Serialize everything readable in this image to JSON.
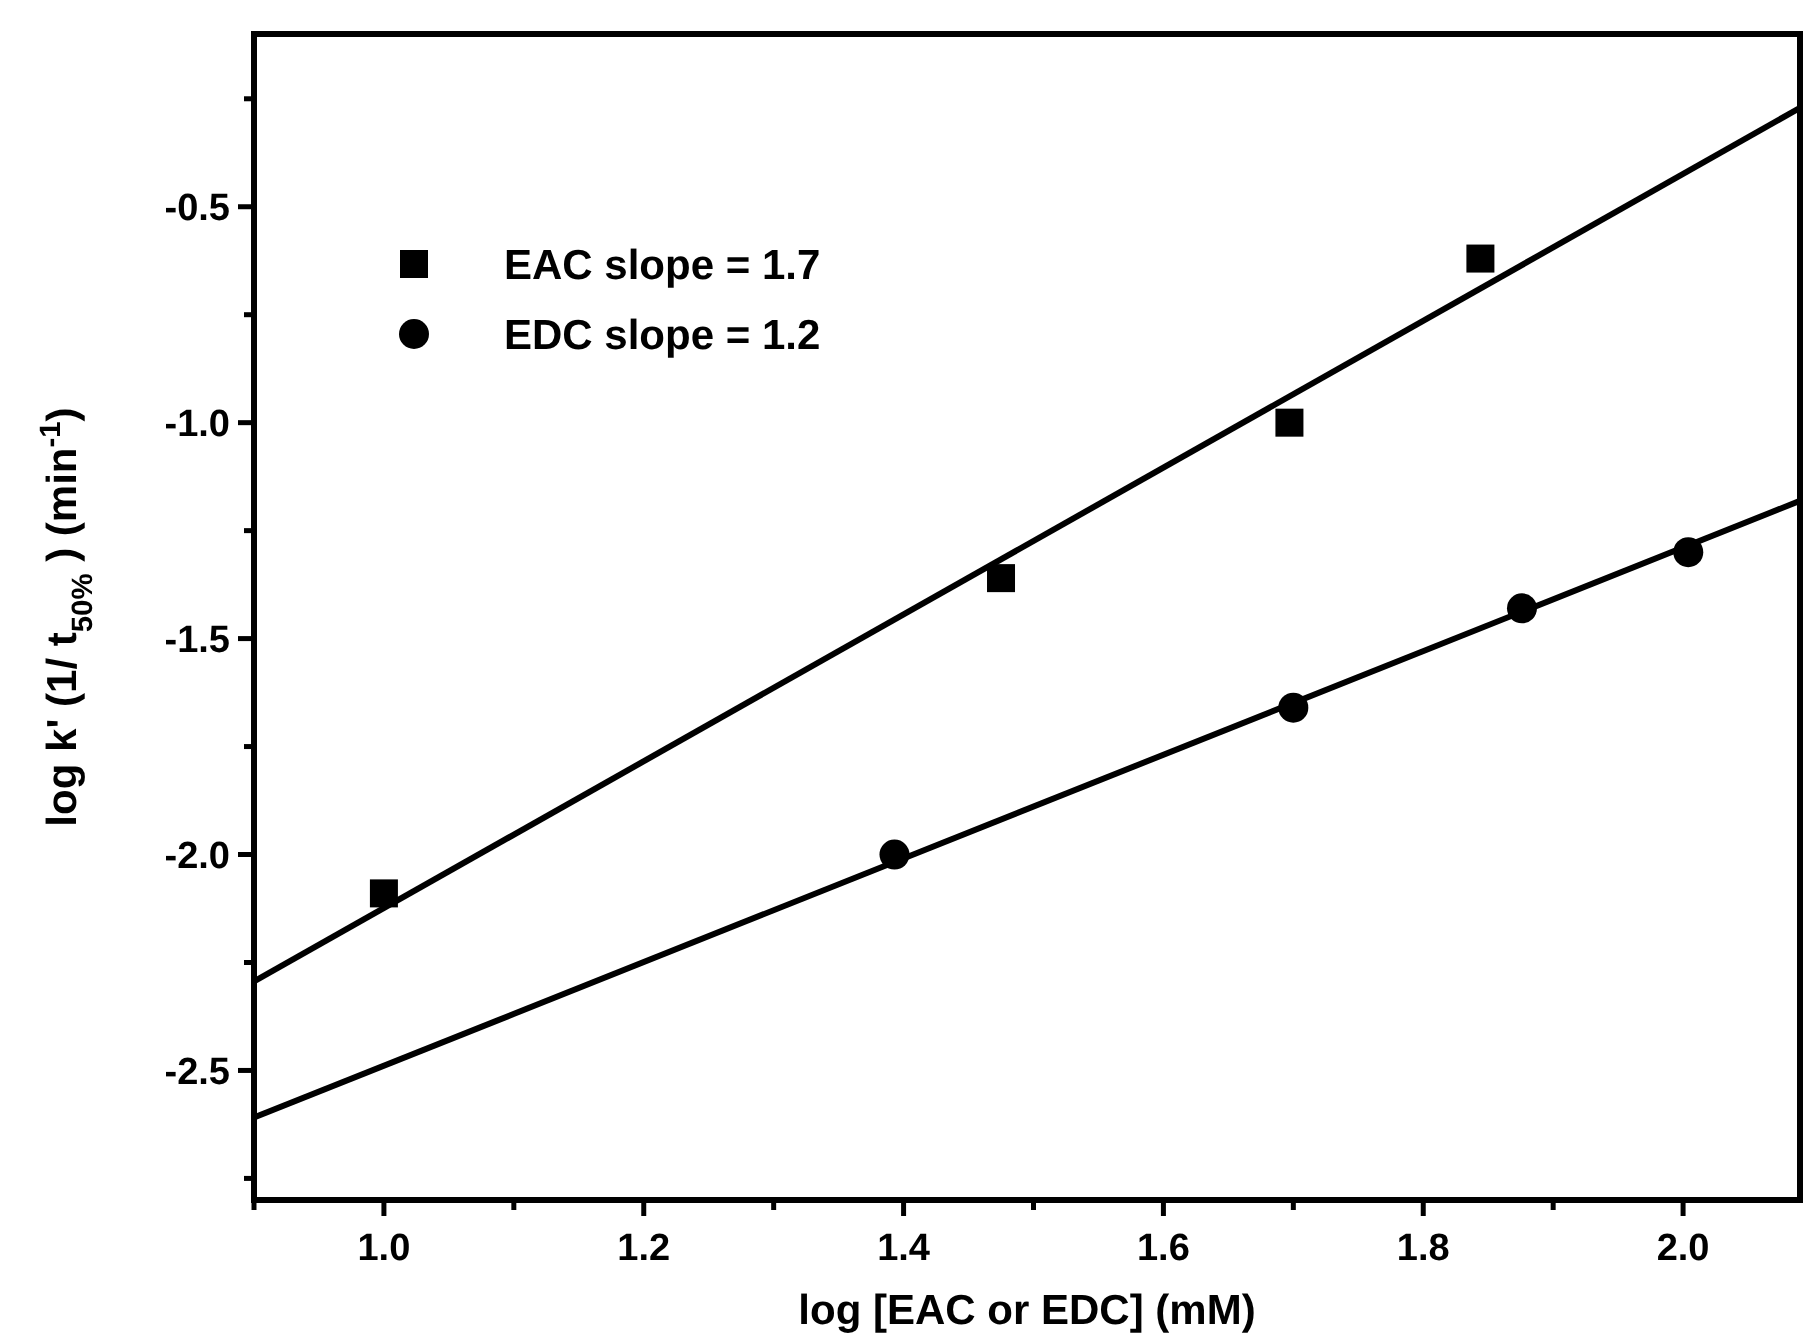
{
  "chart_data": {
    "type": "scatter",
    "xlabel": "log [EAC or EDC] (mM)",
    "ylabel": "log k' (1/ t$_{50%}$ ) (min$^{-1}$)",
    "xlim": [
      0.9,
      2.09
    ],
    "ylim": [
      -2.8,
      -0.1
    ],
    "xticks": [
      {
        "value": 0.9,
        "label": null
      },
      {
        "value": 1,
        "label": "1.0"
      },
      {
        "value": 1.1,
        "label": null
      },
      1.2,
      {
        "value": 1.3,
        "label": null
      },
      1.4,
      {
        "value": 1.5,
        "label": null
      },
      1.6,
      {
        "value": 1.7,
        "label": null
      },
      1.8,
      {
        "value": 1.9,
        "label": null
      },
      {
        "value": 2,
        "label": "2.0"
      }
    ],
    "yticks": [
      {
        "value": -2.75,
        "label": null
      },
      -2.5,
      {
        "value": -2.25,
        "label": null
      },
      {
        "value": -2,
        "label": "-2.0"
      },
      {
        "value": -1.75,
        "label": null
      },
      -1.5,
      {
        "value": -1.25,
        "label": null
      },
      {
        "value": -1,
        "label": "-1.0"
      },
      {
        "value": -0.75,
        "label": null
      },
      -0.5,
      {
        "value": -0.25,
        "label": null
      }
    ],
    "legend": "top left",
    "grid": false,
    "series": [
      {
        "name": "EAC slope = 1.7",
        "color": "#000000",
        "marker": "square",
        "x": [
          1.0,
          1.475,
          1.697,
          1.844
        ],
        "values": [
          -2.09,
          -1.36,
          -1.0,
          -0.62
        ]
      },
      {
        "name": "EDC slope = 1.2",
        "color": "#000000",
        "marker": "circle",
        "x": [
          1.393,
          1.7,
          1.876,
          2.004
        ],
        "values": [
          -2.0,
          -1.66,
          -1.43,
          -1.3
        ]
      },
      {
        "type": "line",
        "color": "#000000",
        "line_style": "solid",
        "x": [
          0.9,
          2.09
        ],
        "values": [
          -2.294,
          -0.271
        ]
      },
      {
        "type": "line",
        "color": "#000000",
        "line_style": "solid",
        "x": [
          0.9,
          2.09
        ],
        "values": [
          -2.609,
          -1.181
        ]
      }
    ]
  }
}
